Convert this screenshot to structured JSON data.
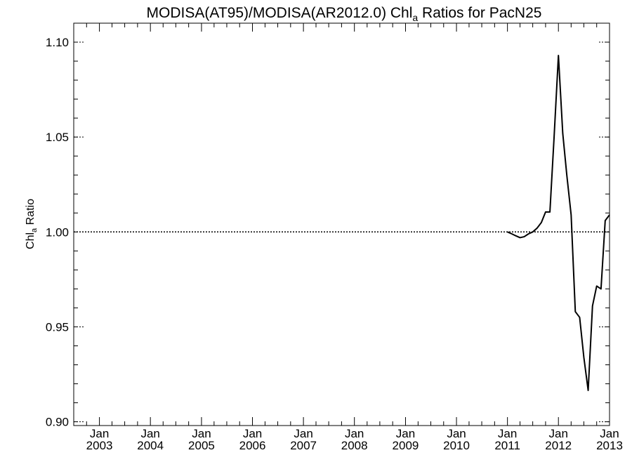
{
  "chart_data": {
    "type": "line",
    "title_main": "MODISA(AT95)/MODISA(AR2012.0)  Chl",
    "title_sub": "a",
    "title_rest": " Ratios for PacN25",
    "ylabel_main": "Chl",
    "ylabel_sub": "a",
    "ylabel_rest": " Ratio",
    "xlim": [
      "2002-07-01",
      "2013-01-01"
    ],
    "ylim": [
      0.898,
      1.11
    ],
    "yticks": [
      {
        "value": 0.9,
        "label": "0.90"
      },
      {
        "value": 0.95,
        "label": "0.95"
      },
      {
        "value": 1.0,
        "label": "1.00"
      },
      {
        "value": 1.05,
        "label": "1.05"
      },
      {
        "value": 1.1,
        "label": "1.10"
      }
    ],
    "xticks": [
      {
        "date": "2003-01-01",
        "month": "Jan",
        "year": "2003"
      },
      {
        "date": "2004-01-01",
        "month": "Jan",
        "year": "2004"
      },
      {
        "date": "2005-01-01",
        "month": "Jan",
        "year": "2005"
      },
      {
        "date": "2006-01-01",
        "month": "Jan",
        "year": "2006"
      },
      {
        "date": "2007-01-01",
        "month": "Jan",
        "year": "2007"
      },
      {
        "date": "2008-01-01",
        "month": "Jan",
        "year": "2008"
      },
      {
        "date": "2009-01-01",
        "month": "Jan",
        "year": "2009"
      },
      {
        "date": "2010-01-01",
        "month": "Jan",
        "year": "2010"
      },
      {
        "date": "2011-01-01",
        "month": "Jan",
        "year": "2011"
      },
      {
        "date": "2012-01-01",
        "month": "Jan",
        "year": "2012"
      },
      {
        "date": "2013-01-01",
        "month": "Jan",
        "year": "2013"
      }
    ],
    "reference_line": 1.0,
    "series": [
      {
        "color": "#000000",
        "points": [
          {
            "x": "2011-01-01",
            "y": 1.0
          },
          {
            "x": "2011-02-01",
            "y": 0.999
          },
          {
            "x": "2011-03-01",
            "y": 0.998
          },
          {
            "x": "2011-04-01",
            "y": 0.997
          },
          {
            "x": "2011-05-01",
            "y": 0.9975
          },
          {
            "x": "2011-06-01",
            "y": 0.999
          },
          {
            "x": "2011-07-01",
            "y": 1.0
          },
          {
            "x": "2011-08-01",
            "y": 1.002
          },
          {
            "x": "2011-09-01",
            "y": 1.005
          },
          {
            "x": "2011-10-01",
            "y": 1.0105
          },
          {
            "x": "2011-11-01",
            "y": 1.0105
          },
          {
            "x": "2011-12-01",
            "y": 1.05
          },
          {
            "x": "2012-01-01",
            "y": 1.093
          },
          {
            "x": "2012-02-01",
            "y": 1.052
          },
          {
            "x": "2012-03-01",
            "y": 1.03
          },
          {
            "x": "2012-04-01",
            "y": 1.009
          },
          {
            "x": "2012-05-01",
            "y": 0.958
          },
          {
            "x": "2012-06-01",
            "y": 0.955
          },
          {
            "x": "2012-07-01",
            "y": 0.934
          },
          {
            "x": "2012-08-01",
            "y": 0.9165
          },
          {
            "x": "2012-09-01",
            "y": 0.961
          },
          {
            "x": "2012-10-01",
            "y": 0.9715
          },
          {
            "x": "2012-11-01",
            "y": 0.97
          },
          {
            "x": "2012-12-01",
            "y": 1.006
          },
          {
            "x": "2013-01-01",
            "y": 1.009
          }
        ]
      }
    ]
  }
}
